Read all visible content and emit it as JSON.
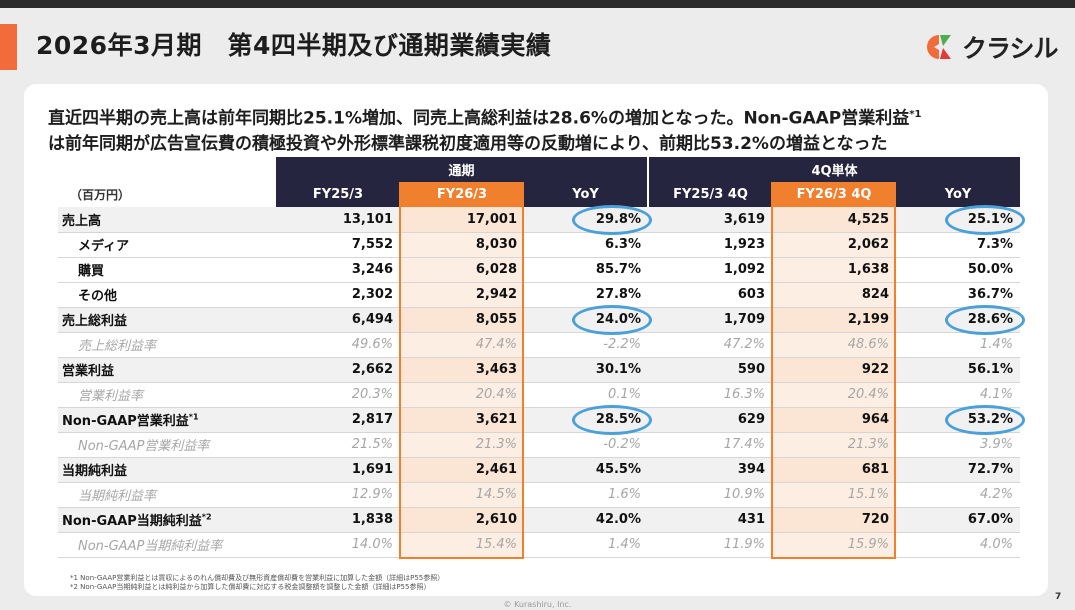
{
  "title": "2026年3月期　第4四半期及び通期業績実績",
  "brand": {
    "name": "クラシル",
    "accent": "#f26b3a",
    "navy": "#25253f",
    "highlight": "#f07f2e",
    "ring": "#4aa0d8"
  },
  "headline": {
    "line1": "直近四半期の売上高は前年同期比25.1%増加、同売上高総利益は28.6%の増加となった。Non-GAAP営業利益",
    "sup": "*1",
    "line2": "は前年同期が広告宣伝費の積極投資や外形標準課税初度適用等の反動増により、前期比53.2%の増益となった"
  },
  "table": {
    "unit": "（百万円）",
    "groups": [
      "通期",
      "4Q単体"
    ],
    "columns": [
      "FY25/3",
      "FY26/3",
      "YoY",
      "FY25/3 4Q",
      "FY26/3 4Q",
      "YoY"
    ],
    "rows": [
      {
        "label": "売上高",
        "sup": "",
        "type": "main",
        "values": [
          "13,101",
          "17,001",
          "29.8%",
          "3,619",
          "4,525",
          "25.1%"
        ]
      },
      {
        "label": "メディア",
        "sup": "",
        "type": "sub",
        "values": [
          "7,552",
          "8,030",
          "6.3%",
          "1,923",
          "2,062",
          "7.3%"
        ]
      },
      {
        "label": "購買",
        "sup": "",
        "type": "sub",
        "values": [
          "3,246",
          "6,028",
          "85.7%",
          "1,092",
          "1,638",
          "50.0%"
        ]
      },
      {
        "label": "その他",
        "sup": "",
        "type": "sub",
        "values": [
          "2,302",
          "2,942",
          "27.8%",
          "603",
          "824",
          "36.7%"
        ]
      },
      {
        "label": "売上総利益",
        "sup": "",
        "type": "main",
        "values": [
          "6,494",
          "8,055",
          "24.0%",
          "1,709",
          "2,199",
          "28.6%"
        ]
      },
      {
        "label": "売上総利益率",
        "sup": "",
        "type": "ratio",
        "values": [
          "49.6%",
          "47.4%",
          "-2.2%",
          "47.2%",
          "48.6%",
          "1.4%"
        ]
      },
      {
        "label": "営業利益",
        "sup": "",
        "type": "main",
        "values": [
          "2,662",
          "3,463",
          "30.1%",
          "590",
          "922",
          "56.1%"
        ]
      },
      {
        "label": "営業利益率",
        "sup": "",
        "type": "ratio",
        "values": [
          "20.3%",
          "20.4%",
          "0.1%",
          "16.3%",
          "20.4%",
          "4.1%"
        ]
      },
      {
        "label": "Non-GAAP営業利益",
        "sup": "*1",
        "type": "main",
        "values": [
          "2,817",
          "3,621",
          "28.5%",
          "629",
          "964",
          "53.2%"
        ]
      },
      {
        "label": "Non-GAAP営業利益率",
        "sup": "",
        "type": "ratio",
        "values": [
          "21.5%",
          "21.3%",
          "-0.2%",
          "17.4%",
          "21.3%",
          "3.9%"
        ]
      },
      {
        "label": "当期純利益",
        "sup": "",
        "type": "main",
        "values": [
          "1,691",
          "2,461",
          "45.5%",
          "394",
          "681",
          "72.7%"
        ]
      },
      {
        "label": "当期純利益率",
        "sup": "",
        "type": "ratio",
        "values": [
          "12.9%",
          "14.5%",
          "1.6%",
          "10.9%",
          "15.1%",
          "4.2%"
        ]
      },
      {
        "label": "Non-GAAP当期純利益",
        "sup": "*2",
        "type": "main",
        "values": [
          "1,838",
          "2,610",
          "42.0%",
          "431",
          "720",
          "67.0%"
        ]
      },
      {
        "label": "Non-GAAP当期純利益率",
        "sup": "",
        "type": "ratio",
        "values": [
          "14.0%",
          "15.4%",
          "1.4%",
          "11.9%",
          "15.9%",
          "4.0%"
        ]
      }
    ]
  },
  "footnotes": [
    "*1 Non-GAAP営業利益とは買収によるのれん償却費及び無形資産償却費を営業利益に加算した金額（詳細はP55参照）",
    "*2 Non-GAAP当期純利益とは純利益から加算した償却費に対応する税金調整額を調整した金額（詳細はP55参照）"
  ],
  "copyright": "© Kurashiru, Inc.",
  "page_number": "7"
}
